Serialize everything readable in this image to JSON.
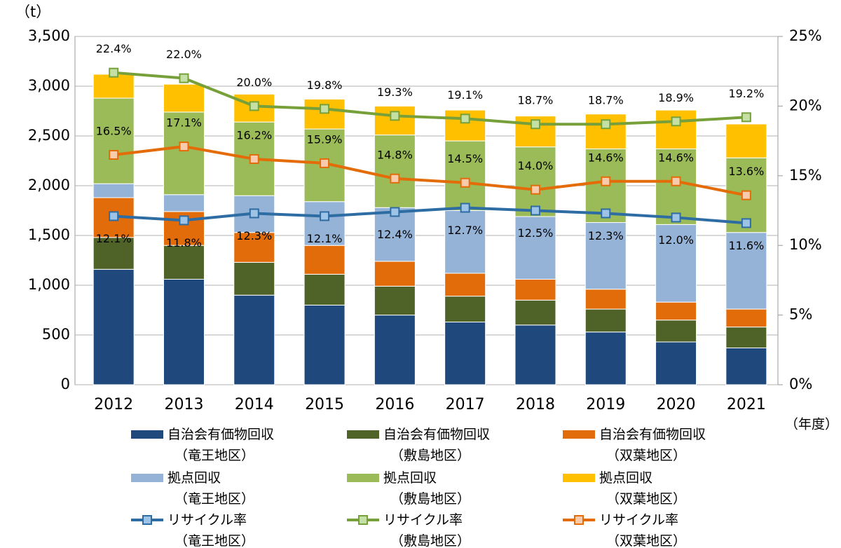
{
  "chart_data": {
    "type": "bar",
    "y_label": "（t）",
    "x_label": "（年度）",
    "categories": [
      "2012",
      "2013",
      "2014",
      "2015",
      "2016",
      "2017",
      "2018",
      "2019",
      "2020",
      "2021"
    ],
    "stacked": true,
    "series": [
      {
        "name": "自治会有価物回収（竜王地区）",
        "color": "#1f497d",
        "values": [
          1160,
          1060,
          900,
          800,
          700,
          630,
          600,
          530,
          430,
          370
        ]
      },
      {
        "name": "自治会有価物回収（敷島地区）",
        "color": "#4f6228",
        "values": [
          320,
          340,
          330,
          310,
          290,
          260,
          250,
          230,
          220,
          210
        ]
      },
      {
        "name": "自治会有価物回収（双葉地区）",
        "color": "#e26b0a",
        "values": [
          400,
          340,
          300,
          290,
          250,
          230,
          210,
          200,
          180,
          180
        ]
      },
      {
        "name": "拠点回収（竜王地区）",
        "color": "#95b3d7",
        "values": [
          140,
          170,
          370,
          440,
          540,
          630,
          630,
          670,
          780,
          770
        ]
      },
      {
        "name": "拠点回収（敷島地区）",
        "color": "#9bbb59",
        "values": [
          860,
          830,
          740,
          730,
          730,
          700,
          700,
          740,
          760,
          750
        ]
      },
      {
        "name": "拠点回収（双葉地区）",
        "color": "#ffc000",
        "values": [
          240,
          280,
          280,
          300,
          290,
          310,
          310,
          350,
          390,
          340
        ]
      },
      {
        "name": "リサイクル率（竜王地区）",
        "color": "#2e6ca4",
        "marker_color": "#9dc3e6",
        "axis": "y2",
        "values": [
          12.1,
          11.8,
          12.3,
          12.1,
          12.4,
          12.7,
          12.5,
          12.3,
          12.0,
          11.6
        ],
        "value_labels": [
          "12.1%",
          "11.8%",
          "12.3%",
          "12.1%",
          "12.4%",
          "12.7%",
          "12.5%",
          "12.3%",
          "12.0%",
          "11.6%"
        ]
      },
      {
        "name": "リサイクル率（敷島地区）",
        "color": "#77a03a",
        "marker_color": "#c5e0a5",
        "axis": "y2",
        "values": [
          22.4,
          22.0,
          20.0,
          19.8,
          19.3,
          19.1,
          18.7,
          18.7,
          18.9,
          19.2
        ],
        "value_labels": [
          "22.4%",
          "22.0%",
          "20.0%",
          "19.8%",
          "19.3%",
          "19.1%",
          "18.7%",
          "18.7%",
          "18.9%",
          "19.2%"
        ]
      },
      {
        "name": "リサイクル率（双葉地区）",
        "color": "#e36c09",
        "marker_color": "#f8cbad",
        "axis": "y2",
        "values": [
          16.5,
          17.1,
          16.2,
          15.9,
          14.8,
          14.5,
          14.0,
          14.6,
          14.6,
          13.6
        ],
        "value_labels": [
          "16.5%",
          "17.1%",
          "16.2%",
          "15.9%",
          "14.8%",
          "14.5%",
          "14.0%",
          "14.6%",
          "14.6%",
          "13.6%"
        ]
      }
    ],
    "ylim": [
      0,
      3500
    ],
    "yticks": [
      0,
      500,
      {
        "value": 1000,
        "label": "1,000"
      },
      {
        "value": 1500,
        "label": "1,500"
      },
      {
        "value": 2000,
        "label": "2,000"
      },
      {
        "value": 2500,
        "label": "2,500"
      },
      {
        "value": 3000,
        "label": "3,000"
      },
      {
        "value": 3500,
        "label": "3,500"
      }
    ],
    "y2lim": [
      0,
      25
    ],
    "y2ticks": [
      {
        "value": 0,
        "label": "0%"
      },
      {
        "value": 5,
        "label": "5%"
      },
      {
        "value": 10,
        "label": "10%"
      },
      {
        "value": 15,
        "label": "15%"
      },
      {
        "value": 20,
        "label": "20%"
      },
      {
        "value": 25,
        "label": "25%"
      }
    ],
    "grid": true,
    "legend": "bottom"
  }
}
